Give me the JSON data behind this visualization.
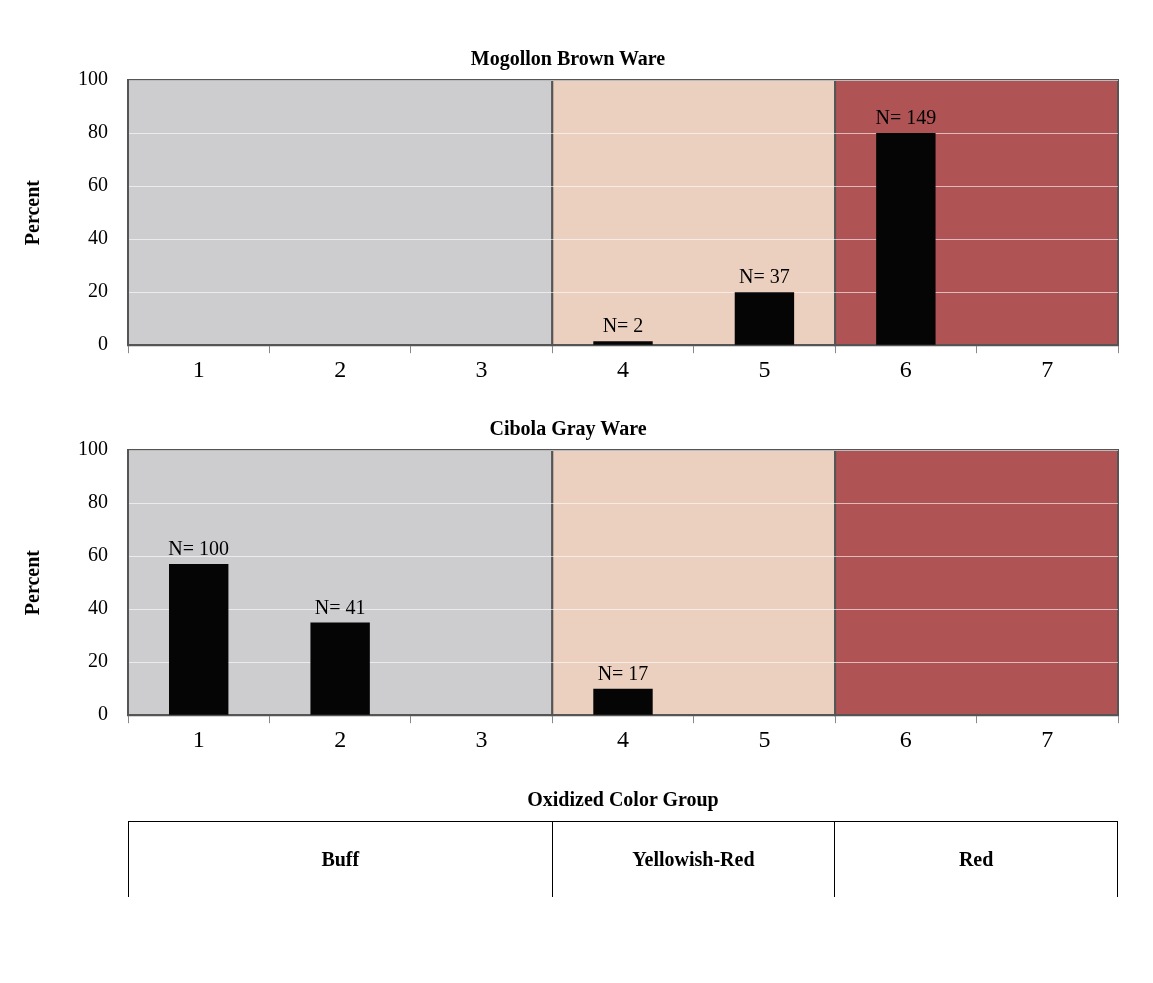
{
  "chart_data": [
    {
      "type": "bar",
      "title": "Mogollon Brown Ware",
      "ylabel": "Percent",
      "categories": [
        "1",
        "2",
        "3",
        "4",
        "5",
        "6",
        "7"
      ],
      "values": [
        0,
        0,
        0,
        1.5,
        20,
        80,
        0
      ],
      "color": "#050505",
      "ylim": [
        0,
        100
      ],
      "yticks": [
        0,
        20,
        40,
        60,
        80,
        100
      ],
      "grid": "y",
      "annotations": [
        {
          "text": "N= 2",
          "x": "4",
          "y": 1.5
        },
        {
          "text": "N= 37",
          "x": "5",
          "y": 20
        },
        {
          "text": "N= 149",
          "x": "6",
          "y": 80
        }
      ],
      "bands": [
        {
          "axis": "x",
          "from": "1",
          "to": "3",
          "color": "#cdcdd0"
        },
        {
          "axis": "x",
          "from": "4",
          "to": "5",
          "color": "#ebd0bf"
        },
        {
          "axis": "x",
          "from": "6",
          "to": "7",
          "color": "#b05354"
        }
      ]
    },
    {
      "type": "bar",
      "title": "Cibola Gray Ware",
      "ylabel": "Percent",
      "categories": [
        "1",
        "2",
        "3",
        "4",
        "5",
        "6",
        "7"
      ],
      "values": [
        57,
        35,
        0,
        10,
        0,
        0,
        0
      ],
      "color": "#050505",
      "ylim": [
        0,
        100
      ],
      "yticks": [
        0,
        20,
        40,
        60,
        80,
        100
      ],
      "grid": "y",
      "annotations": [
        {
          "text": "N= 100",
          "x": "1",
          "y": 57
        },
        {
          "text": "N= 41",
          "x": "2",
          "y": 35
        },
        {
          "text": "N= 17",
          "x": "4",
          "y": 10
        }
      ],
      "bands": [
        {
          "axis": "x",
          "from": "1",
          "to": "3",
          "color": "#cdcdd0"
        },
        {
          "axis": "x",
          "from": "4",
          "to": "5",
          "color": "#ebd0bf"
        },
        {
          "axis": "x",
          "from": "6",
          "to": "7",
          "color": "#b05354"
        }
      ]
    },
    {
      "type": "other",
      "title": "Oxidized Color Group",
      "annotations": [
        "Buff",
        "Yellowish-Red",
        "Red"
      ]
    }
  ]
}
